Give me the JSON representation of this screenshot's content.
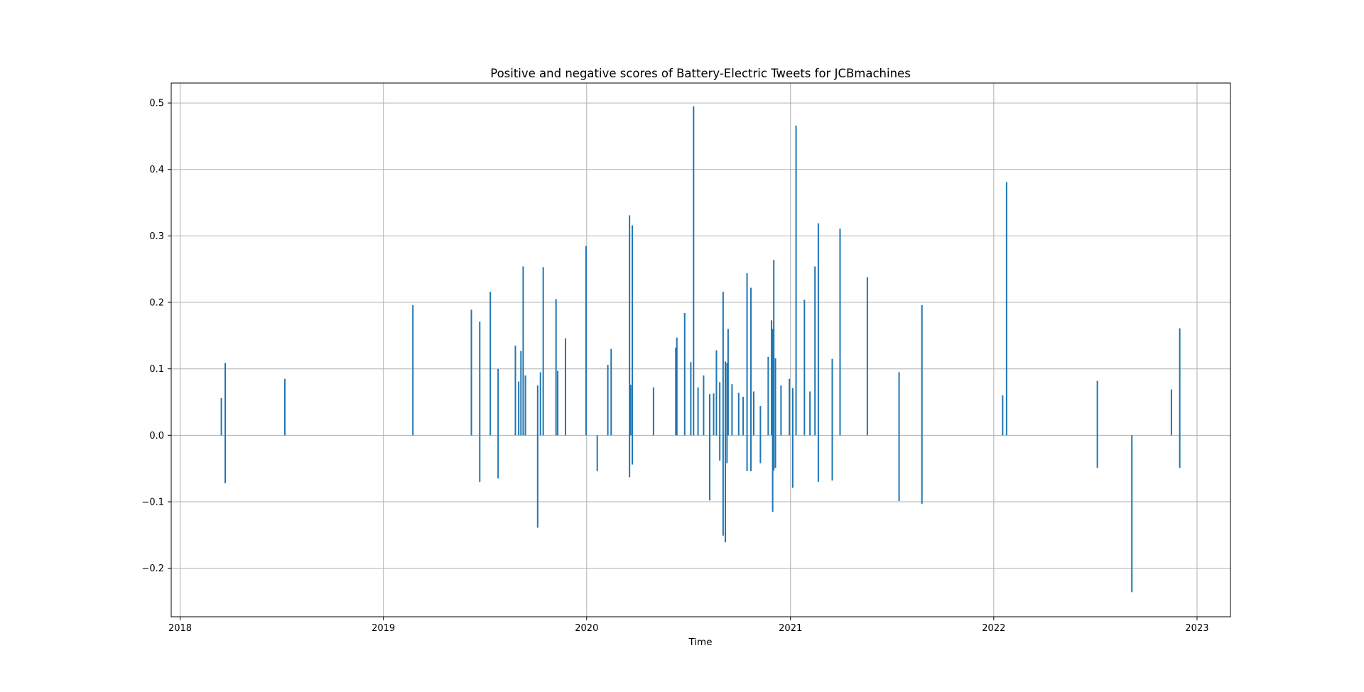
{
  "chart_data": {
    "type": "bar",
    "title": "Positive and negative scores of Battery-Electric Tweets for JCBmachines",
    "xlabel": "Time",
    "ylabel": "",
    "x_ticks": [
      "2018",
      "2019",
      "2020",
      "2021",
      "2022",
      "2023"
    ],
    "y_ticks": [
      -0.2,
      -0.1,
      0.0,
      0.1,
      0.2,
      0.3,
      0.4,
      0.5
    ],
    "y_tick_labels": [
      "−0.2",
      "−0.1",
      "0.0",
      "0.1",
      "0.2",
      "0.3",
      "0.4",
      "0.5"
    ],
    "xlim": [
      "2017-12-16",
      "2023-03-02"
    ],
    "ylim": [
      -0.273,
      0.53
    ],
    "grid": true,
    "legend": "none",
    "series_color": "#1f77b4",
    "series": [
      {
        "values": [
          {
            "date": "2018-03-16",
            "pos": 0.056,
            "neg": 0.0
          },
          {
            "date": "2018-03-23",
            "pos": 0.109,
            "neg": -0.072
          },
          {
            "date": "2018-07-08",
            "pos": 0.085,
            "neg": 0.0
          },
          {
            "date": "2019-02-23",
            "pos": 0.196,
            "neg": 0.0
          },
          {
            "date": "2019-06-08",
            "pos": 0.189,
            "neg": 0.0
          },
          {
            "date": "2019-06-23",
            "pos": 0.171,
            "neg": -0.07
          },
          {
            "date": "2019-07-12",
            "pos": 0.216,
            "neg": 0.0
          },
          {
            "date": "2019-07-26",
            "pos": 0.1,
            "neg": -0.065
          },
          {
            "date": "2019-08-26",
            "pos": 0.135,
            "neg": 0.0
          },
          {
            "date": "2019-09-01",
            "pos": 0.081,
            "neg": 0.0
          },
          {
            "date": "2019-09-05",
            "pos": 0.127,
            "neg": 0.0
          },
          {
            "date": "2019-09-09",
            "pos": 0.254,
            "neg": 0.0
          },
          {
            "date": "2019-09-13",
            "pos": 0.09,
            "neg": 0.0
          },
          {
            "date": "2019-10-05",
            "pos": 0.075,
            "neg": -0.139
          },
          {
            "date": "2019-10-10",
            "pos": 0.095,
            "neg": 0.0
          },
          {
            "date": "2019-10-15",
            "pos": 0.253,
            "neg": 0.0
          },
          {
            "date": "2019-11-07",
            "pos": 0.205,
            "neg": 0.0
          },
          {
            "date": "2019-11-10",
            "pos": 0.097,
            "neg": 0.0
          },
          {
            "date": "2019-11-24",
            "pos": 0.146,
            "neg": 0.0
          },
          {
            "date": "2019-12-31",
            "pos": 0.285,
            "neg": 0.0
          },
          {
            "date": "2020-01-20",
            "pos": 0.0,
            "neg": -0.054
          },
          {
            "date": "2020-02-08",
            "pos": 0.106,
            "neg": 0.0
          },
          {
            "date": "2020-02-14",
            "pos": 0.13,
            "neg": 0.0
          },
          {
            "date": "2020-03-18",
            "pos": 0.331,
            "neg": -0.063
          },
          {
            "date": "2020-03-20",
            "pos": 0.076,
            "neg": 0.0
          },
          {
            "date": "2020-03-23",
            "pos": 0.316,
            "neg": -0.044
          },
          {
            "date": "2020-04-30",
            "pos": 0.072,
            "neg": 0.0
          },
          {
            "date": "2020-06-09",
            "pos": 0.132,
            "neg": 0.0
          },
          {
            "date": "2020-06-11",
            "pos": 0.147,
            "neg": 0.0
          },
          {
            "date": "2020-06-25",
            "pos": 0.184,
            "neg": 0.0
          },
          {
            "date": "2020-07-06",
            "pos": 0.11,
            "neg": 0.0
          },
          {
            "date": "2020-07-11",
            "pos": 0.495,
            "neg": 0.0
          },
          {
            "date": "2020-07-19",
            "pos": 0.072,
            "neg": 0.0
          },
          {
            "date": "2020-07-29",
            "pos": 0.09,
            "neg": 0.0
          },
          {
            "date": "2020-08-09",
            "pos": 0.062,
            "neg": -0.098
          },
          {
            "date": "2020-08-16",
            "pos": 0.063,
            "neg": 0.0
          },
          {
            "date": "2020-08-21",
            "pos": 0.128,
            "neg": 0.0
          },
          {
            "date": "2020-08-27",
            "pos": 0.08,
            "neg": -0.038
          },
          {
            "date": "2020-09-02",
            "pos": 0.216,
            "neg": -0.151
          },
          {
            "date": "2020-09-06",
            "pos": 0.111,
            "neg": -0.161
          },
          {
            "date": "2020-09-09",
            "pos": 0.109,
            "neg": -0.042
          },
          {
            "date": "2020-09-11",
            "pos": 0.16,
            "neg": 0.0
          },
          {
            "date": "2020-09-18",
            "pos": 0.077,
            "neg": 0.0
          },
          {
            "date": "2020-09-30",
            "pos": 0.064,
            "neg": 0.0
          },
          {
            "date": "2020-10-08",
            "pos": 0.058,
            "neg": 0.0
          },
          {
            "date": "2020-10-15",
            "pos": 0.244,
            "neg": -0.054
          },
          {
            "date": "2020-10-22",
            "pos": 0.222,
            "neg": -0.054
          },
          {
            "date": "2020-10-27",
            "pos": 0.066,
            "neg": 0.0
          },
          {
            "date": "2020-11-08",
            "pos": 0.044,
            "neg": -0.042
          },
          {
            "date": "2020-11-22",
            "pos": 0.118,
            "neg": 0.0
          },
          {
            "date": "2020-11-28",
            "pos": 0.173,
            "neg": 0.0
          },
          {
            "date": "2020-11-30",
            "pos": 0.16,
            "neg": -0.115
          },
          {
            "date": "2020-12-02",
            "pos": 0.264,
            "neg": -0.053
          },
          {
            "date": "2020-12-05",
            "pos": 0.116,
            "neg": -0.049
          },
          {
            "date": "2020-12-15",
            "pos": 0.075,
            "neg": 0.0
          },
          {
            "date": "2020-12-30",
            "pos": 0.085,
            "neg": 0.0
          },
          {
            "date": "2021-01-05",
            "pos": 0.071,
            "neg": -0.079
          },
          {
            "date": "2021-01-11",
            "pos": 0.466,
            "neg": 0.0
          },
          {
            "date": "2021-01-26",
            "pos": 0.204,
            "neg": 0.0
          },
          {
            "date": "2021-02-05",
            "pos": 0.066,
            "neg": 0.0
          },
          {
            "date": "2021-02-14",
            "pos": 0.254,
            "neg": 0.0
          },
          {
            "date": "2021-02-20",
            "pos": 0.319,
            "neg": -0.07
          },
          {
            "date": "2021-03-17",
            "pos": 0.115,
            "neg": -0.068
          },
          {
            "date": "2021-03-31",
            "pos": 0.311,
            "neg": 0.0
          },
          {
            "date": "2021-05-19",
            "pos": 0.238,
            "neg": 0.0
          },
          {
            "date": "2021-07-15",
            "pos": 0.095,
            "neg": -0.099
          },
          {
            "date": "2021-08-25",
            "pos": 0.196,
            "neg": -0.103
          },
          {
            "date": "2022-01-17",
            "pos": 0.06,
            "neg": 0.0
          },
          {
            "date": "2022-01-24",
            "pos": 0.381,
            "neg": 0.0
          },
          {
            "date": "2022-07-06",
            "pos": 0.082,
            "neg": -0.049
          },
          {
            "date": "2022-09-06",
            "pos": 0.0,
            "neg": -0.236
          },
          {
            "date": "2022-11-16",
            "pos": 0.069,
            "neg": 0.0
          },
          {
            "date": "2022-12-01",
            "pos": 0.161,
            "neg": -0.049
          }
        ]
      }
    ]
  }
}
